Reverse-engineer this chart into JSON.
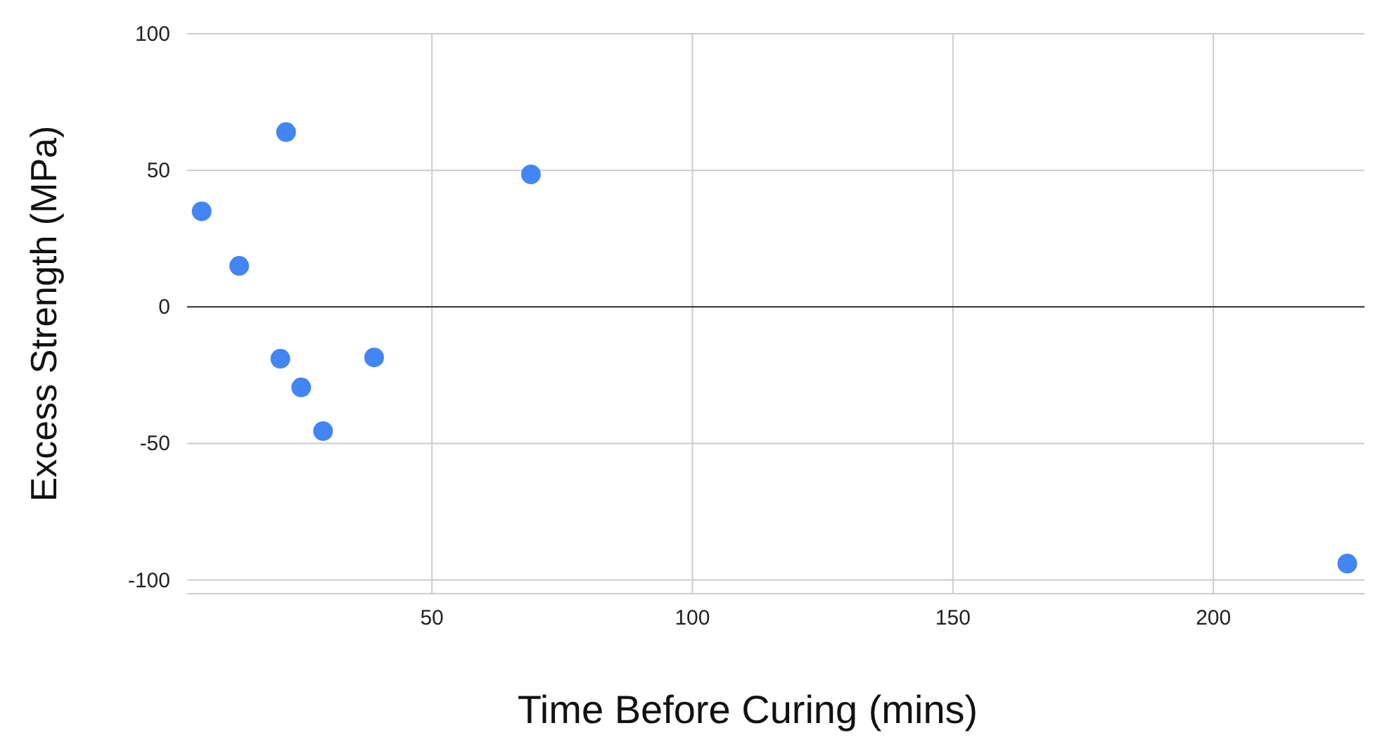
{
  "chart_data": {
    "type": "scatter",
    "xlabel": "Time Before Curing (mins)",
    "ylabel": "Excess Strength (MPa)",
    "x": [
      5.8,
      13,
      22,
      20.9,
      24.9,
      29.1,
      38.9,
      69,
      225.7
    ],
    "series": [
      {
        "color": "#4285f4",
        "values": [
          35,
          15,
          64,
          -19,
          -29.5,
          -45.5,
          -18.5,
          48.5,
          -94
        ]
      }
    ],
    "xlim": [
      3,
      229
    ],
    "xticks": [
      50,
      100,
      150,
      200
    ],
    "ylim": [
      -105,
      100
    ],
    "yticks": [
      -100,
      -50,
      0,
      50,
      100
    ],
    "grid": true,
    "marker": "circle",
    "ref_lines": [
      {
        "axis": "y",
        "value": 0,
        "color": "#333333"
      }
    ]
  }
}
